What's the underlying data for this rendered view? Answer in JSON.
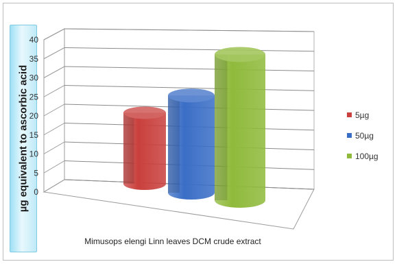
{
  "chart_data": {
    "type": "bar",
    "style": "3d-cylinder",
    "ylabel": "µg equivalent to ascorbic acid",
    "xlabel": "",
    "categories": [
      "Mimusops elengi Linn leaves  DCM  crude extract"
    ],
    "series": [
      {
        "name": "5µg",
        "values": [
          19
        ],
        "color": "#c9403d"
      },
      {
        "name": "50µg",
        "values": [
          26
        ],
        "color": "#3a6ec6"
      },
      {
        "name": "100µg",
        "values": [
          39
        ],
        "color": "#8fba3b"
      }
    ],
    "ylim": [
      0,
      40
    ],
    "yticks": [
      "0",
      "5",
      "10",
      "15",
      "20",
      "25",
      "30",
      "35",
      "40"
    ],
    "grid": true,
    "legend": "right"
  }
}
